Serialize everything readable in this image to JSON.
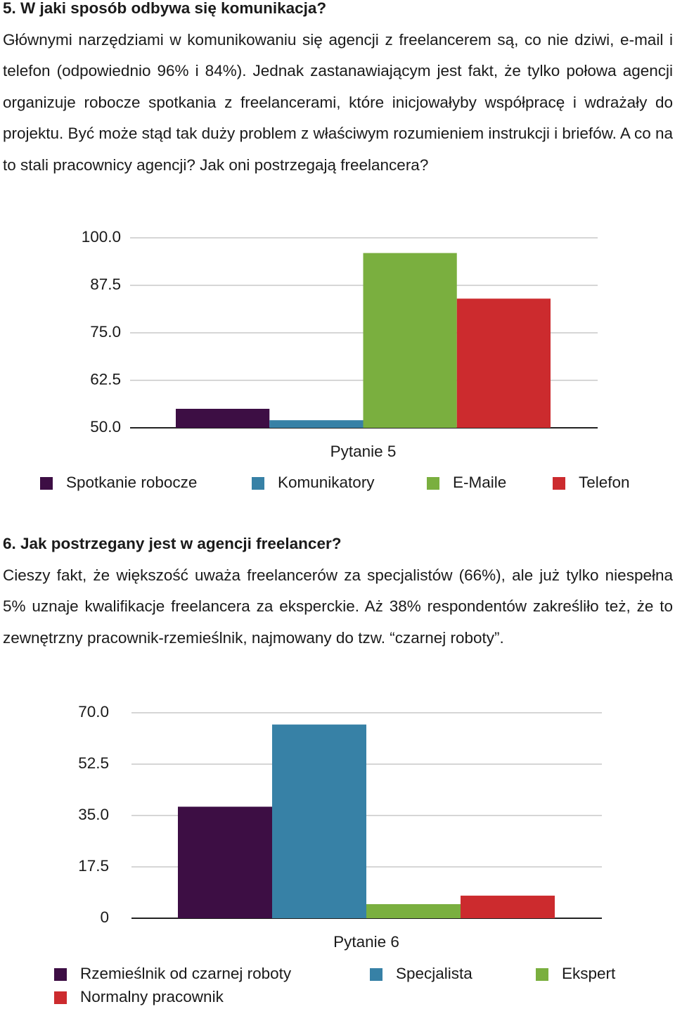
{
  "sections": [
    {
      "heading": "5. W jaki sposób odbywa się komunikacja?",
      "paragraph": "Głównymi narzędziami w komunikowaniu się agencji z freelancerem są, co nie dziwi, e-mail i telefon (odpowiednio 96% i 84%). Jednak zastanawiającym jest fakt, że tylko połowa agencji organizuje robocze spotkania z freelancerami, które inicjowałyby współpracę i wdrażały do projektu. Być może stąd tak duży problem z właściwym rozumieniem instrukcji i briefów. A co na to stali pracownicy agencji? Jak oni postrzegają freelancera?"
    },
    {
      "heading": "6. Jak postrzegany jest w agencji freelancer?",
      "paragraph": "Cieszy fakt, że większość uważa freelancerów za specjalistów (66%), ale już tylko niespełna 5% uznaje kwalifikacje freelancera za eksperckie. Aż 38% respondentów zakreśliło też, że to zewnętrzny pracownik-rzemieślnik, najmowany do tzw. “czarnej roboty”."
    }
  ],
  "chart_data": [
    {
      "type": "bar",
      "categories": [
        "Pytanie 5"
      ],
      "series": [
        {
          "name": "Spotkanie robocze",
          "color": "#3d0e44",
          "values": [
            55
          ]
        },
        {
          "name": "Komunikatory",
          "color": "#3781a6",
          "values": [
            52
          ]
        },
        {
          "name": "E-Maile",
          "color": "#7aaf3f",
          "values": [
            96
          ]
        },
        {
          "name": "Telefon",
          "color": "#cc2b2e",
          "values": [
            84
          ]
        }
      ],
      "ylim": [
        50,
        100
      ],
      "yticks": [
        {
          "value": 50,
          "label": "50.0"
        },
        62.5,
        {
          "value": 75,
          "label": "75.0"
        },
        87.5,
        {
          "value": 100,
          "label": "100.0"
        }
      ],
      "grid": true
    },
    {
      "type": "bar",
      "categories": [
        "Pytanie 6"
      ],
      "series": [
        {
          "name": "Rzemieślnik od czarnej roboty",
          "color": "#3d0e44",
          "values": [
            38
          ]
        },
        {
          "name": "Specjalista",
          "color": "#3781a6",
          "values": [
            66
          ]
        },
        {
          "name": "Ekspert",
          "color": "#7aaf3f",
          "values": [
            4.8
          ]
        },
        {
          "name": "Normalny pracownik",
          "color": "#cc2b2e",
          "values": [
            7.7
          ]
        }
      ],
      "ylim": [
        0,
        70
      ],
      "yticks": [
        0,
        17.5,
        {
          "value": 35,
          "label": "35.0"
        },
        52.5,
        {
          "value": 70,
          "label": "70.0"
        }
      ],
      "grid": true
    }
  ]
}
